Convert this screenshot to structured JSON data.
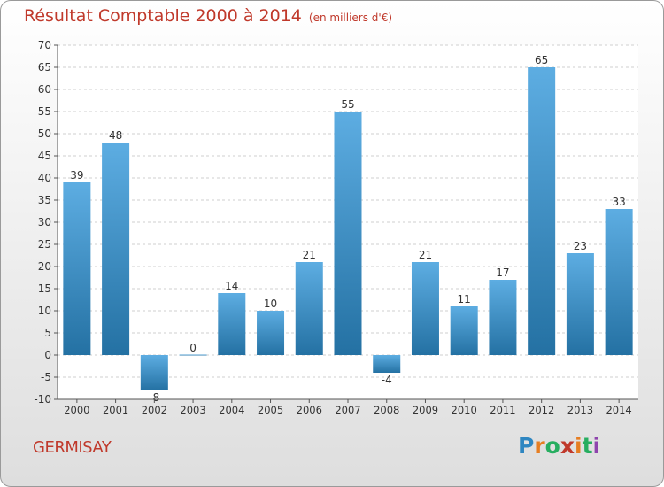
{
  "title": "Résultat Comptable 2000 à 2014",
  "subtitle": "(en milliers d'€)",
  "commune": "GERMISAY",
  "brand": "Proxiti",
  "colors": {
    "title": "#c0392b",
    "bar_top": "#5dade2",
    "bar_bottom": "#2471a3",
    "grid": "#cfcfcf",
    "axis": "#555555"
  },
  "chart_data": {
    "type": "bar",
    "title": "Résultat Comptable 2000 à 2014",
    "xlabel": "",
    "ylabel": "",
    "categories": [
      "2000",
      "2001",
      "2002",
      "2003",
      "2004",
      "2005",
      "2006",
      "2007",
      "2008",
      "2009",
      "2010",
      "2011",
      "2012",
      "2013",
      "2014"
    ],
    "values": [
      39,
      48,
      -8,
      0,
      14,
      10,
      21,
      55,
      -4,
      21,
      11,
      17,
      65,
      23,
      33
    ],
    "ylim": [
      -10,
      70
    ],
    "yticks": [
      -10,
      -5,
      0,
      5,
      10,
      15,
      20,
      25,
      30,
      35,
      40,
      45,
      50,
      55,
      60,
      65,
      70
    ],
    "grid": true,
    "legend": "none"
  }
}
